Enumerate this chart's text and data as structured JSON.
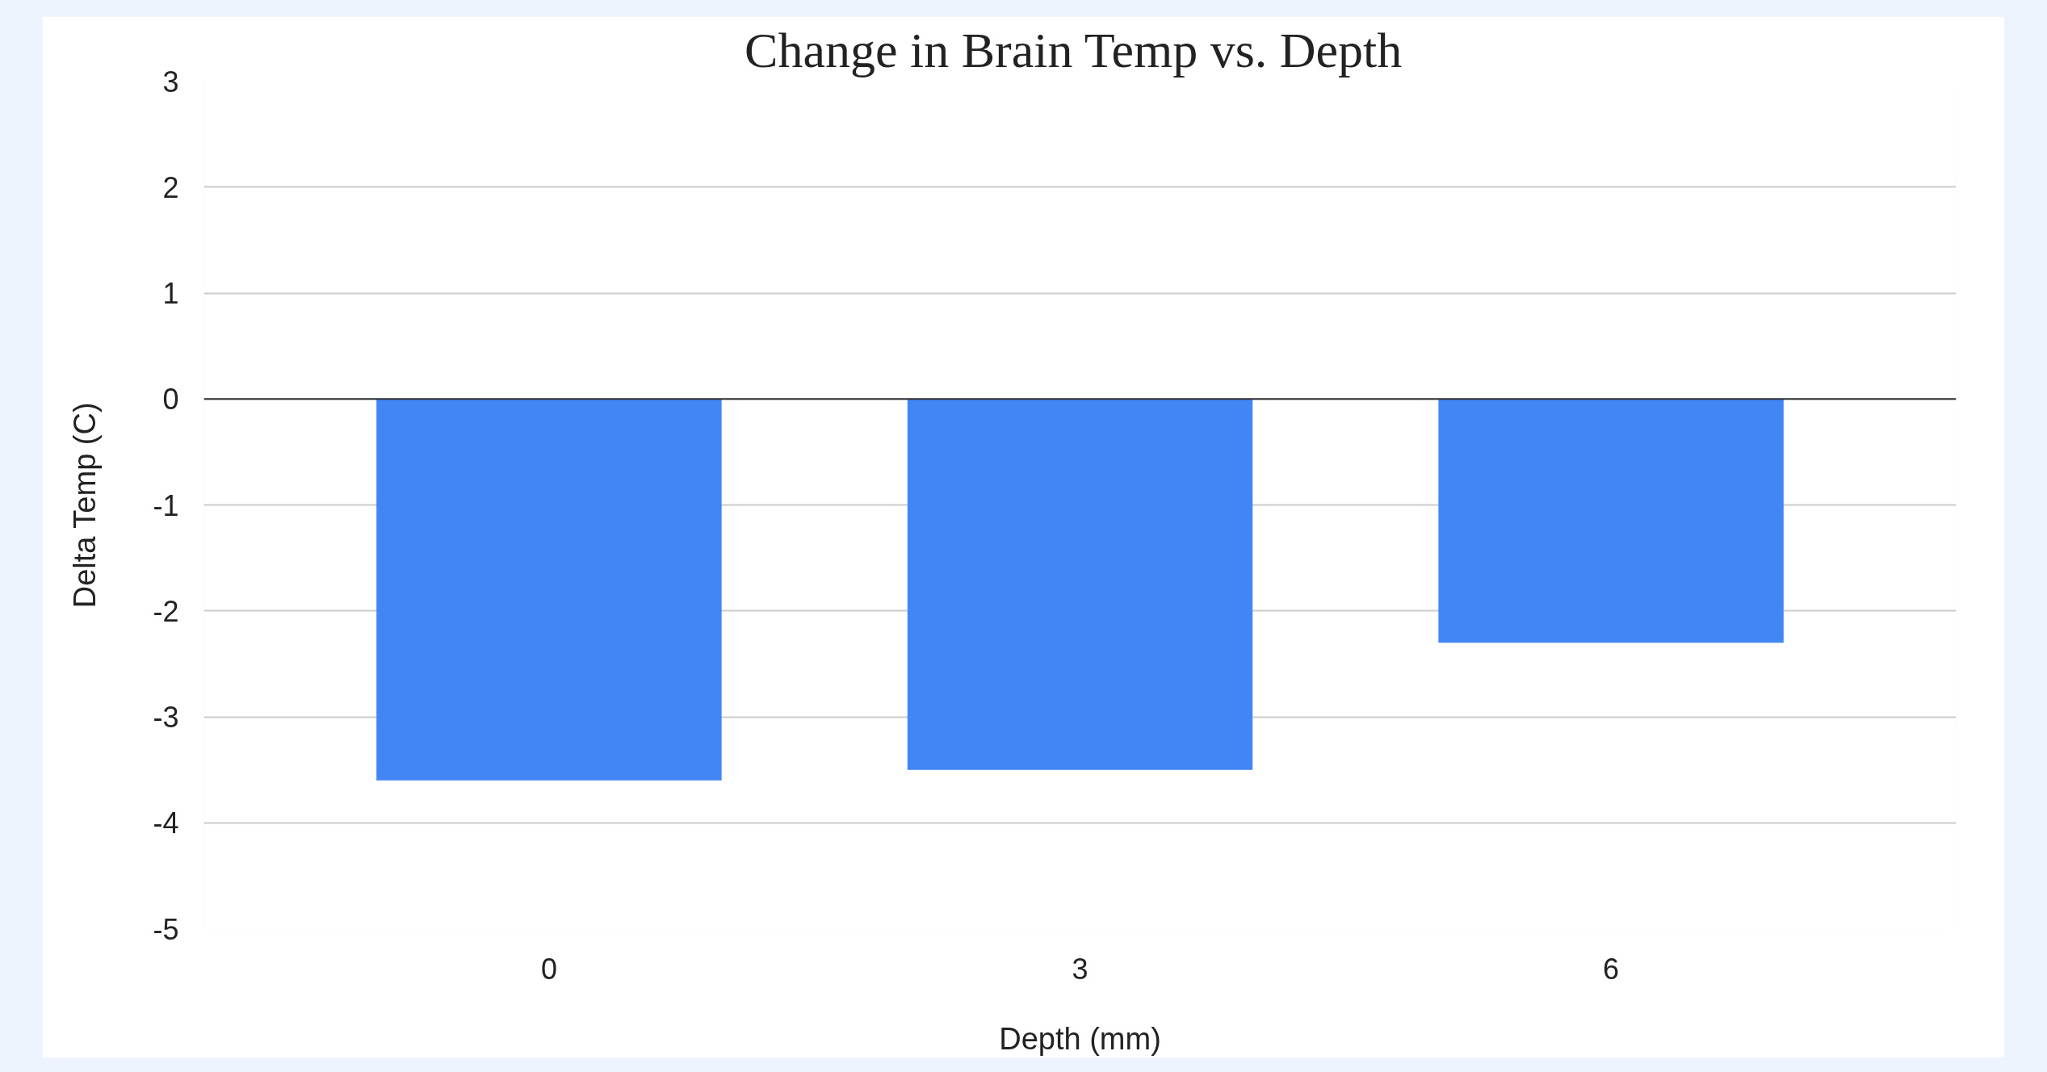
{
  "chart_data": {
    "type": "bar",
    "title": "Change in Brain Temp  vs. Depth",
    "xlabel": "Depth (mm)",
    "ylabel": "Delta Temp (C)",
    "categories": [
      "0",
      "3",
      "6"
    ],
    "values": [
      -3.6,
      -3.5,
      -2.3
    ],
    "color": "#4285f4",
    "ylim": [
      -5,
      3
    ],
    "yticks": [
      -5,
      -4,
      -3,
      -2,
      -1,
      0,
      1,
      2,
      3
    ],
    "grid": "y"
  }
}
